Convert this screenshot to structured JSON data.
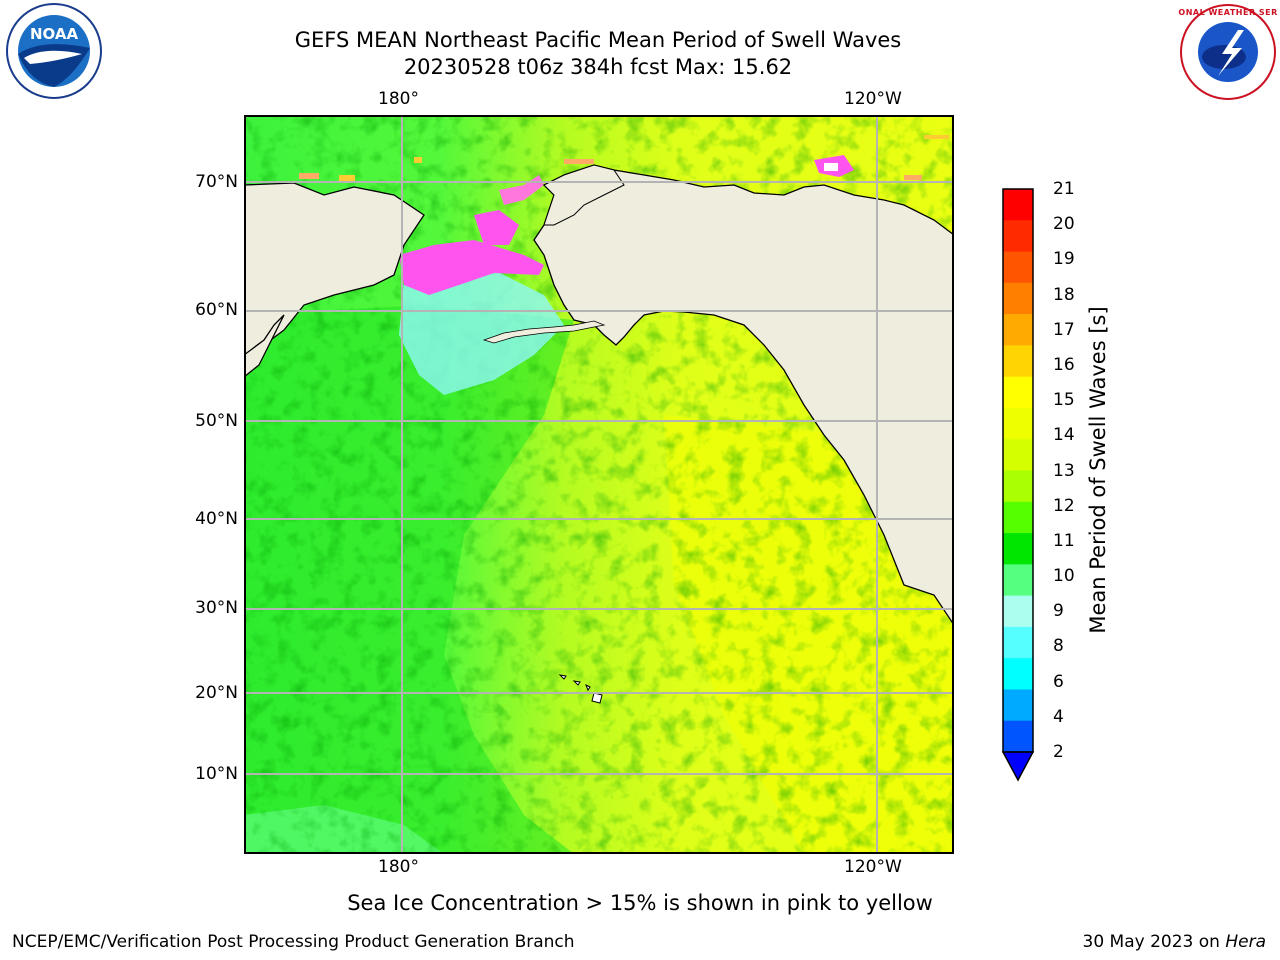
{
  "title_line1": "GEFS MEAN Northeast Pacific Mean Period of Swell Waves",
  "title_line2": "20230528 t06z 384h fcst   Max: 15.62",
  "lon_ticks": [
    "180°",
    "120°W"
  ],
  "lat_ticks": [
    "70°N",
    "60°N",
    "50°N",
    "40°N",
    "30°N",
    "20°N",
    "10°N"
  ],
  "colorbar": {
    "title": "Mean Period of Swell Waves [s]",
    "labels": [
      "21",
      "20",
      "19",
      "18",
      "17",
      "16",
      "15",
      "14",
      "13",
      "12",
      "11",
      "10",
      "9",
      "8",
      "6",
      "4",
      "2"
    ],
    "colors": [
      "#ff0000",
      "#ff2a00",
      "#ff5500",
      "#ff8000",
      "#ffaa00",
      "#ffd400",
      "#ffff00",
      "#eeff00",
      "#d4ff00",
      "#aaff00",
      "#55ff00",
      "#00e600",
      "#55ff80",
      "#aaffee",
      "#55ffff",
      "#00ffff",
      "#00aaff",
      "#0055ff"
    ],
    "extend_color": "#0000ff"
  },
  "colors": {
    "land": "#efedde",
    "ocean_green": "#3cf23c",
    "ocean_yellow": "#e9ff1a",
    "ice_pink": "#ff55ee",
    "ice_cyan": "#8ff7f7",
    "grid": "#b4b4b4"
  },
  "footnote": "Sea Ice Concentration > 15% is shown in pink to yellow",
  "credit_left": "NCEP/EMC/Verification Post Processing Product Generation Branch",
  "credit_date": "30 May 2023 on",
  "credit_machine": "Hera",
  "logos": {
    "left": "noaa-logo",
    "right": "nws-logo",
    "left_text": "NOAA",
    "right_text": "NATIONAL WEATHER SERVICE"
  }
}
